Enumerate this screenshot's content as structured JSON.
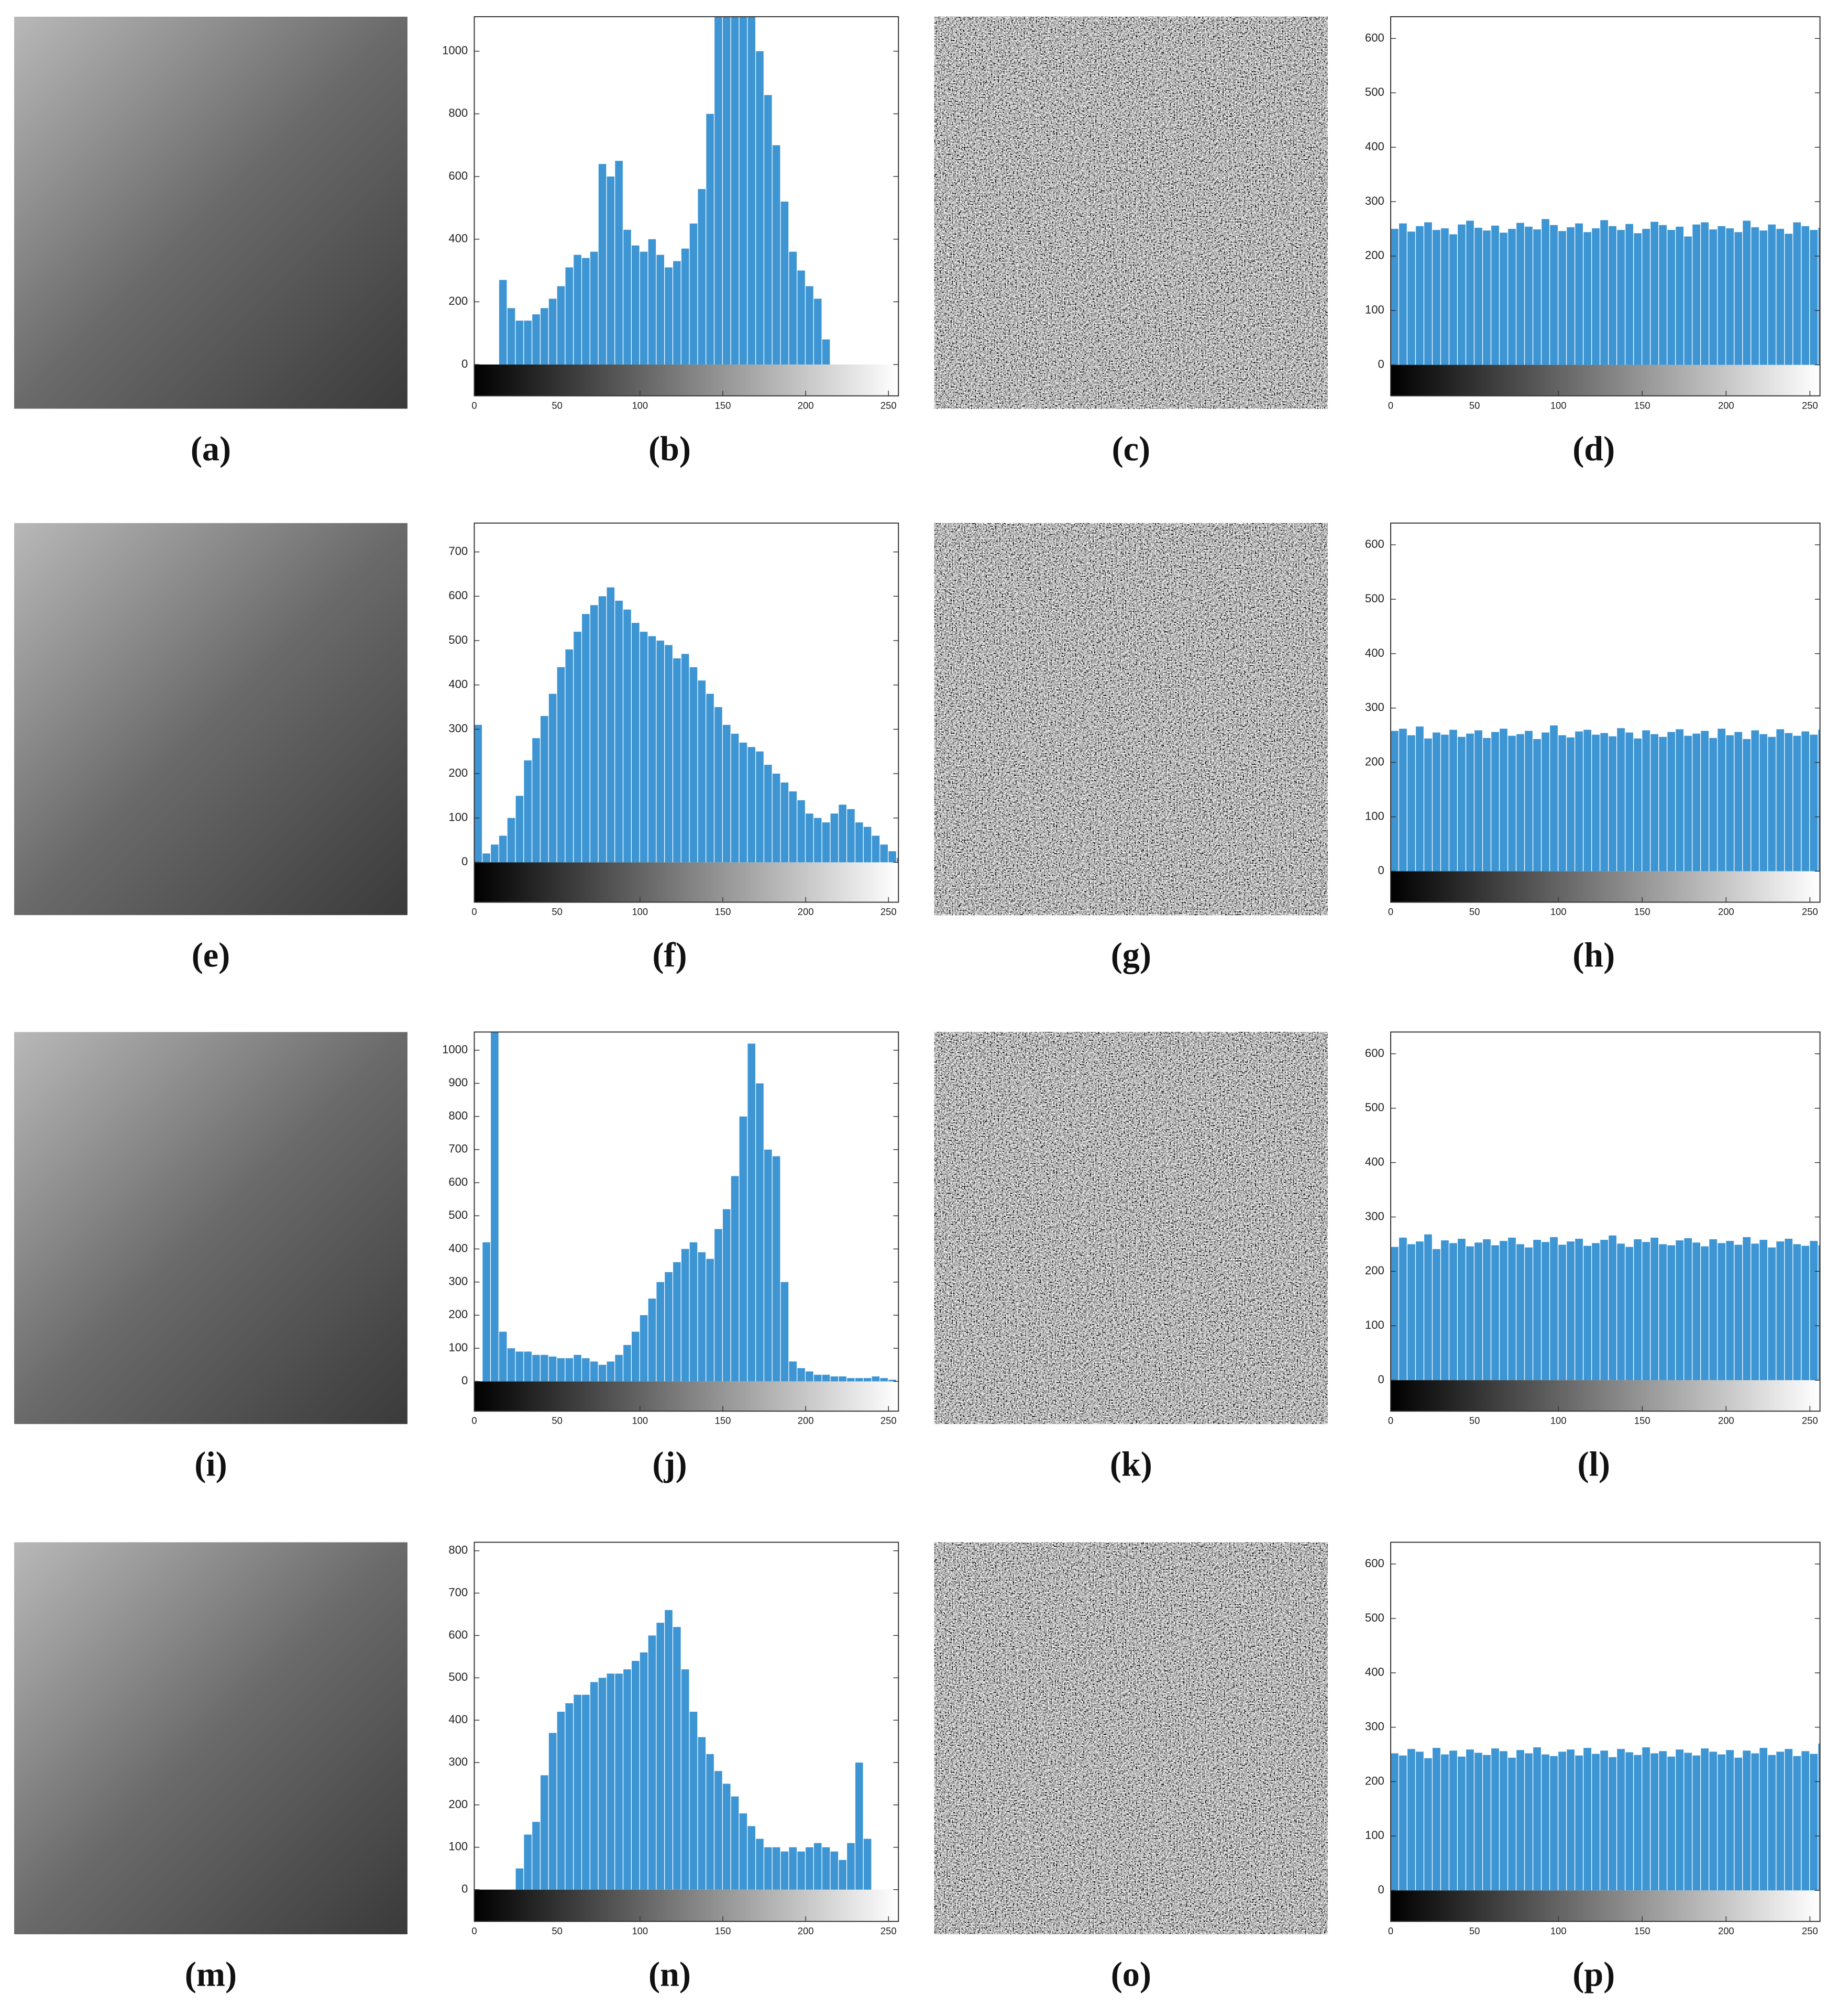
{
  "chart_data": [
    {
      "type": "image",
      "caption": "(a)"
    },
    {
      "type": "bar",
      "caption": "(b)",
      "color": "#3d95d3",
      "xlim": [
        0,
        256
      ],
      "ylim": [
        -100,
        1110
      ],
      "xticks": [
        0,
        50,
        100,
        150,
        200,
        250
      ],
      "yticks": [
        0,
        200,
        400,
        600,
        800,
        1000
      ],
      "x": [
        0,
        5,
        10,
        15,
        20,
        25,
        30,
        35,
        40,
        45,
        50,
        55,
        60,
        65,
        70,
        75,
        80,
        85,
        90,
        95,
        100,
        105,
        110,
        115,
        120,
        125,
        130,
        135,
        140,
        145,
        150,
        155,
        160,
        165,
        170,
        175,
        180,
        185,
        190,
        195,
        200,
        205,
        210,
        215,
        220,
        225,
        230,
        235,
        240,
        245,
        250,
        255
      ],
      "values": [
        0,
        0,
        0,
        270,
        180,
        140,
        140,
        160,
        180,
        210,
        250,
        310,
        350,
        340,
        360,
        640,
        600,
        650,
        430,
        380,
        360,
        400,
        350,
        310,
        330,
        370,
        450,
        560,
        800,
        1110,
        1110,
        1110,
        1110,
        1110,
        1000,
        860,
        700,
        520,
        360,
        300,
        250,
        210,
        80,
        0,
        0,
        0,
        0,
        0,
        0,
        0,
        0,
        0
      ]
    },
    {
      "type": "image",
      "caption": "(c)"
    },
    {
      "type": "bar",
      "caption": "(d)",
      "color": "#3d95d3",
      "xlim": [
        0,
        256
      ],
      "ylim": [
        -57,
        640
      ],
      "xticks": [
        0,
        50,
        100,
        150,
        200,
        250
      ],
      "yticks": [
        0,
        100,
        200,
        300,
        400,
        500,
        600
      ],
      "x": [
        0,
        5,
        10,
        15,
        20,
        25,
        30,
        35,
        40,
        45,
        50,
        55,
        60,
        65,
        70,
        75,
        80,
        85,
        90,
        95,
        100,
        105,
        110,
        115,
        120,
        125,
        130,
        135,
        140,
        145,
        150,
        155,
        160,
        165,
        170,
        175,
        180,
        185,
        190,
        195,
        200,
        205,
        210,
        215,
        220,
        225,
        230,
        235,
        240,
        245,
        250,
        255
      ],
      "values": [
        250,
        260,
        245,
        255,
        262,
        248,
        251,
        240,
        258,
        265,
        252,
        247,
        256,
        243,
        250,
        261,
        254,
        249,
        268,
        257,
        246,
        253,
        260,
        244,
        251,
        266,
        255,
        248,
        259,
        242,
        250,
        263,
        257,
        248,
        254,
        236,
        258,
        262,
        249,
        255,
        251,
        244,
        265,
        253,
        247,
        258,
        250,
        241,
        262,
        255,
        248,
        252
      ]
    },
    {
      "type": "image",
      "caption": "(e)"
    },
    {
      "type": "bar",
      "caption": "(f)",
      "color": "#3d95d3",
      "xlim": [
        0,
        256
      ],
      "ylim": [
        -90,
        765
      ],
      "xticks": [
        0,
        50,
        100,
        150,
        200,
        250
      ],
      "yticks": [
        0,
        100,
        200,
        300,
        400,
        500,
        600,
        700
      ],
      "x": [
        0,
        5,
        10,
        15,
        20,
        25,
        30,
        35,
        40,
        45,
        50,
        55,
        60,
        65,
        70,
        75,
        80,
        85,
        90,
        95,
        100,
        105,
        110,
        115,
        120,
        125,
        130,
        135,
        140,
        145,
        150,
        155,
        160,
        165,
        170,
        175,
        180,
        185,
        190,
        195,
        200,
        205,
        210,
        215,
        220,
        225,
        230,
        235,
        240,
        245,
        250,
        255
      ],
      "values": [
        310,
        20,
        40,
        60,
        100,
        150,
        230,
        280,
        330,
        380,
        440,
        480,
        520,
        560,
        580,
        600,
        620,
        590,
        570,
        540,
        520,
        510,
        500,
        490,
        460,
        470,
        440,
        410,
        380,
        350,
        310,
        290,
        270,
        260,
        250,
        220,
        200,
        180,
        160,
        140,
        110,
        100,
        90,
        110,
        130,
        120,
        90,
        80,
        60,
        40,
        25,
        10
      ]
    },
    {
      "type": "image",
      "caption": "(g)"
    },
    {
      "type": "bar",
      "caption": "(h)",
      "color": "#3d95d3",
      "xlim": [
        0,
        256
      ],
      "ylim": [
        -57,
        640
      ],
      "xticks": [
        0,
        50,
        100,
        150,
        200,
        250
      ],
      "yticks": [
        0,
        100,
        200,
        300,
        400,
        500,
        600
      ],
      "x": [
        0,
        5,
        10,
        15,
        20,
        25,
        30,
        35,
        40,
        45,
        50,
        55,
        60,
        65,
        70,
        75,
        80,
        85,
        90,
        95,
        100,
        105,
        110,
        115,
        120,
        125,
        130,
        135,
        140,
        145,
        150,
        155,
        160,
        165,
        170,
        175,
        180,
        185,
        190,
        195,
        200,
        205,
        210,
        215,
        220,
        225,
        230,
        235,
        240,
        245,
        250,
        255
      ],
      "values": [
        258,
        262,
        250,
        266,
        244,
        255,
        251,
        260,
        247,
        253,
        259,
        245,
        256,
        262,
        249,
        252,
        258,
        243,
        255,
        268,
        250,
        246,
        257,
        260,
        251,
        254,
        248,
        263,
        255,
        244,
        259,
        252,
        247,
        256,
        261,
        249,
        253,
        258,
        245,
        262,
        250,
        256,
        243,
        259,
        252,
        247,
        261,
        254,
        249,
        257,
        251,
        260
      ]
    },
    {
      "type": "image",
      "caption": "(i)"
    },
    {
      "type": "bar",
      "caption": "(j)",
      "color": "#3d95d3",
      "xlim": [
        0,
        256
      ],
      "ylim": [
        -90,
        1055
      ],
      "xticks": [
        0,
        50,
        100,
        150,
        200,
        250
      ],
      "yticks": [
        0,
        100,
        200,
        300,
        400,
        500,
        600,
        700,
        800,
        900,
        1000
      ],
      "x": [
        0,
        5,
        10,
        15,
        20,
        25,
        30,
        35,
        40,
        45,
        50,
        55,
        60,
        65,
        70,
        75,
        80,
        85,
        90,
        95,
        100,
        105,
        110,
        115,
        120,
        125,
        130,
        135,
        140,
        145,
        150,
        155,
        160,
        165,
        170,
        175,
        180,
        185,
        190,
        195,
        200,
        205,
        210,
        215,
        220,
        225,
        230,
        235,
        240,
        245,
        250,
        255
      ],
      "values": [
        0,
        420,
        1055,
        150,
        100,
        90,
        90,
        80,
        80,
        75,
        70,
        70,
        80,
        70,
        60,
        50,
        60,
        80,
        110,
        150,
        200,
        250,
        300,
        330,
        360,
        400,
        420,
        390,
        370,
        460,
        520,
        620,
        800,
        1020,
        900,
        700,
        680,
        300,
        60,
        40,
        30,
        20,
        20,
        15,
        15,
        10,
        10,
        10,
        15,
        10,
        5,
        0
      ]
    },
    {
      "type": "image",
      "caption": "(k)"
    },
    {
      "type": "bar",
      "caption": "(l)",
      "color": "#3d95d3",
      "xlim": [
        0,
        256
      ],
      "ylim": [
        -57,
        640
      ],
      "xticks": [
        0,
        50,
        100,
        150,
        200,
        250
      ],
      "yticks": [
        0,
        100,
        200,
        300,
        400,
        500,
        600
      ],
      "x": [
        0,
        5,
        10,
        15,
        20,
        25,
        30,
        35,
        40,
        45,
        50,
        55,
        60,
        65,
        70,
        75,
        80,
        85,
        90,
        95,
        100,
        105,
        110,
        115,
        120,
        125,
        130,
        135,
        140,
        145,
        150,
        155,
        160,
        165,
        170,
        175,
        180,
        185,
        190,
        195,
        200,
        205,
        210,
        215,
        220,
        225,
        230,
        235,
        240,
        245,
        250,
        255
      ],
      "values": [
        245,
        262,
        250,
        255,
        268,
        241,
        257,
        252,
        260,
        246,
        253,
        259,
        248,
        256,
        262,
        250,
        244,
        258,
        254,
        263,
        249,
        255,
        260,
        247,
        252,
        258,
        266,
        251,
        245,
        259,
        254,
        262,
        250,
        248,
        257,
        261,
        253,
        246,
        259,
        252,
        256,
        249,
        263,
        251,
        258,
        244,
        255,
        260,
        250,
        247,
        256,
        248
      ]
    },
    {
      "type": "image",
      "caption": "(m)"
    },
    {
      "type": "bar",
      "caption": "(n)",
      "color": "#3d95d3",
      "xlim": [
        0,
        256
      ],
      "ylim": [
        -75,
        820
      ],
      "xticks": [
        0,
        50,
        100,
        150,
        200,
        250
      ],
      "yticks": [
        0,
        100,
        200,
        300,
        400,
        500,
        600,
        700,
        800
      ],
      "x": [
        0,
        5,
        10,
        15,
        20,
        25,
        30,
        35,
        40,
        45,
        50,
        55,
        60,
        65,
        70,
        75,
        80,
        85,
        90,
        95,
        100,
        105,
        110,
        115,
        120,
        125,
        130,
        135,
        140,
        145,
        150,
        155,
        160,
        165,
        170,
        175,
        180,
        185,
        190,
        195,
        200,
        205,
        210,
        215,
        220,
        225,
        230,
        235,
        240,
        245,
        250,
        255
      ],
      "values": [
        0,
        0,
        0,
        0,
        0,
        50,
        130,
        160,
        270,
        370,
        420,
        440,
        460,
        460,
        490,
        500,
        510,
        510,
        520,
        540,
        560,
        600,
        630,
        660,
        620,
        520,
        420,
        360,
        320,
        280,
        250,
        220,
        180,
        150,
        120,
        100,
        100,
        90,
        100,
        90,
        100,
        110,
        100,
        90,
        70,
        110,
        300,
        120,
        0,
        0,
        0,
        0
      ]
    },
    {
      "type": "image",
      "caption": "(o)"
    },
    {
      "type": "bar",
      "caption": "(p)",
      "color": "#3d95d3",
      "xlim": [
        0,
        256
      ],
      "ylim": [
        -57,
        640
      ],
      "xticks": [
        0,
        50,
        100,
        150,
        200,
        250
      ],
      "yticks": [
        0,
        100,
        200,
        300,
        400,
        500,
        600
      ],
      "x": [
        0,
        5,
        10,
        15,
        20,
        25,
        30,
        35,
        40,
        45,
        50,
        55,
        60,
        65,
        70,
        75,
        80,
        85,
        90,
        95,
        100,
        105,
        110,
        115,
        120,
        125,
        130,
        135,
        140,
        145,
        150,
        155,
        160,
        165,
        170,
        175,
        180,
        185,
        190,
        195,
        200,
        205,
        210,
        215,
        220,
        225,
        230,
        235,
        240,
        245,
        250,
        255
      ],
      "values": [
        252,
        248,
        260,
        255,
        243,
        262,
        250,
        257,
        246,
        259,
        253,
        249,
        261,
        256,
        244,
        258,
        252,
        263,
        250,
        247,
        255,
        259,
        248,
        262,
        251,
        257,
        245,
        260,
        254,
        249,
        263,
        252,
        256,
        246,
        259,
        253,
        248,
        261,
        255,
        250,
        258,
        244,
        257,
        252,
        262,
        249,
        255,
        260,
        247,
        256,
        251,
        270
      ]
    }
  ]
}
